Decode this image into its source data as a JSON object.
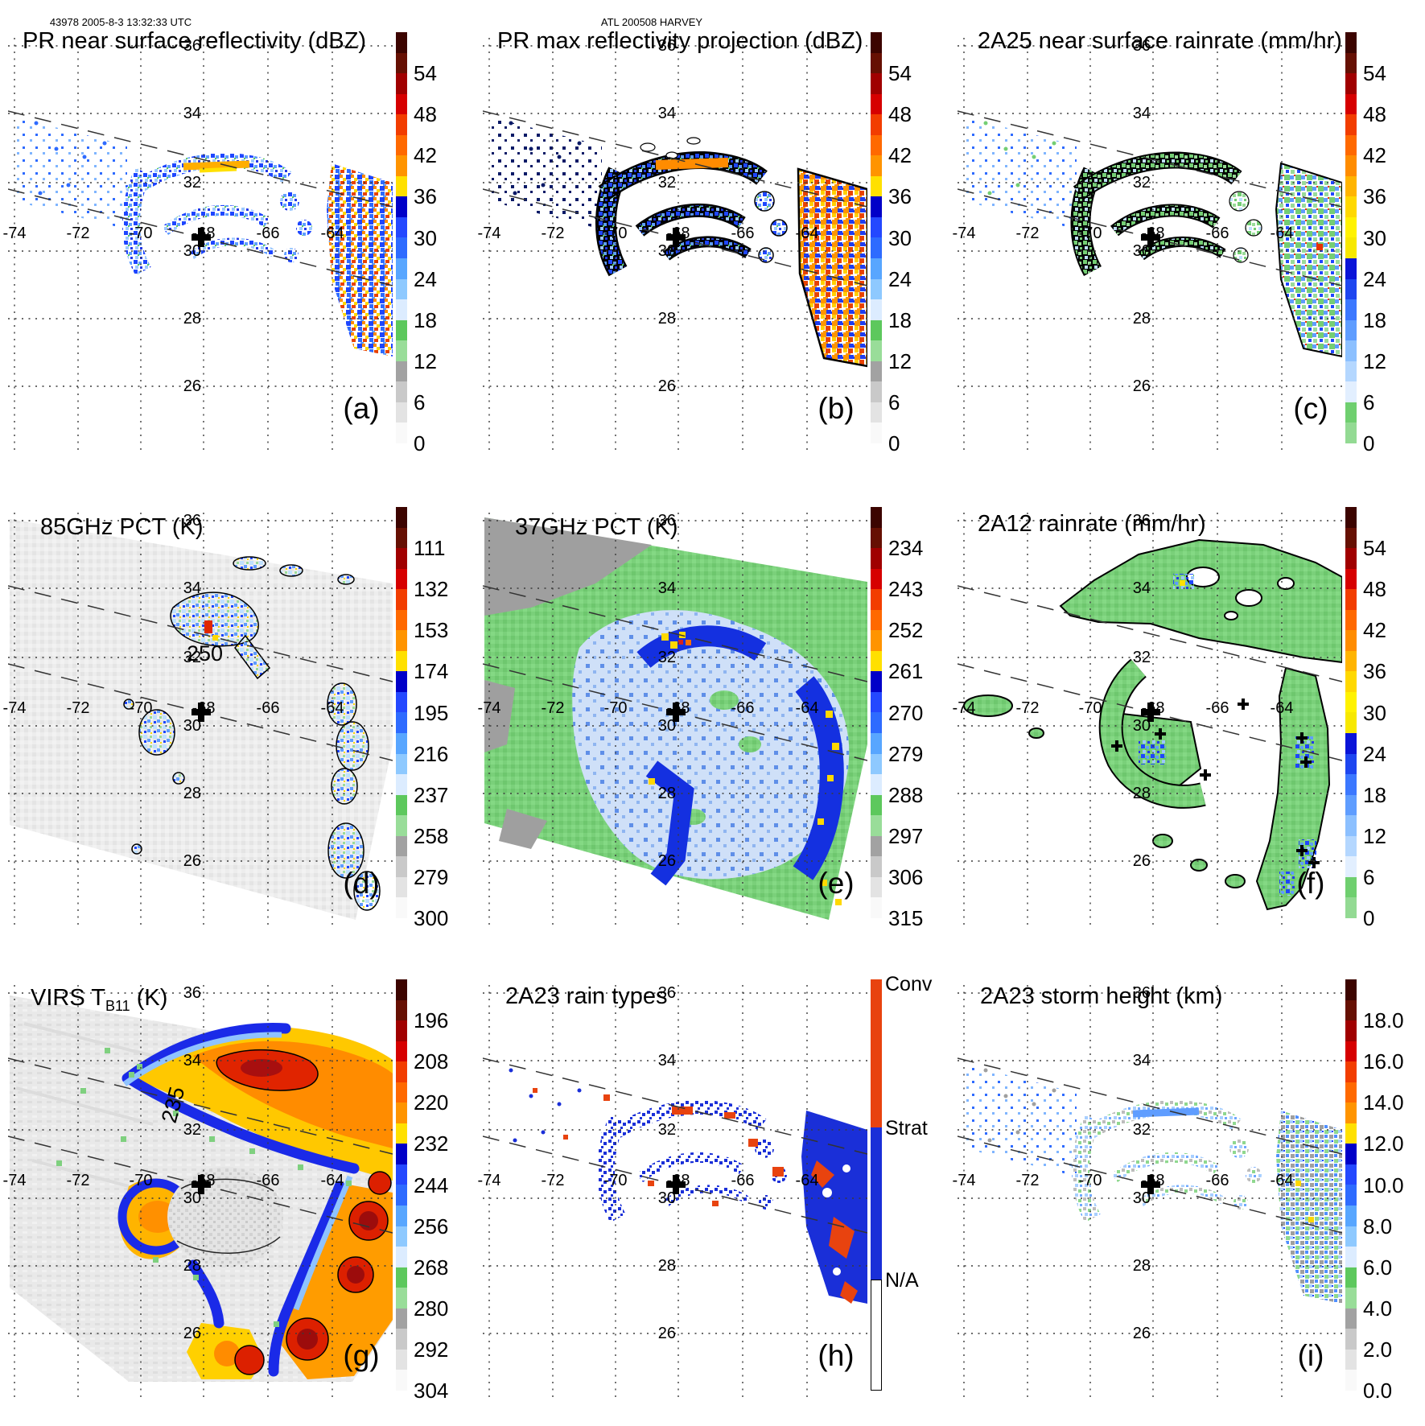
{
  "header": {
    "left": "43978 2005-8-3 13:32:33 UTC",
    "center": "ATL 200508 HARVEY"
  },
  "axes": {
    "lon_labels": [
      "-74",
      "-72",
      "-70",
      "-68",
      "-66",
      "-64"
    ],
    "lat_labels": [
      "36",
      "34",
      "32",
      "30",
      "28",
      "26"
    ]
  },
  "palettes": {
    "std": [
      "#3c0400",
      "#661003",
      "#a00000",
      "#d60000",
      "#f23d00",
      "#ff6900",
      "#ff9400",
      "#ffe000",
      "#0000c8",
      "#2448ff",
      "#2e6bff",
      "#58a6ff",
      "#8ec9ff",
      "#dcecff",
      "#5dc85d",
      "#99dd99",
      "#a2a2a2",
      "#c9c9c9",
      "#e3e3e3",
      "#f9f9f9"
    ],
    "rain": [
      "#3c0400",
      "#661003",
      "#a00000",
      "#d60000",
      "#f23d00",
      "#ff6900",
      "#ff8c00",
      "#ffb400",
      "#ffd800",
      "#fff200",
      "#f7e800",
      "#0a14d8",
      "#1e46f0",
      "#3c78ff",
      "#5f9dff",
      "#8cc0ff",
      "#b4d7ff",
      "#e2efff",
      "#6fcf6f",
      "#93da93"
    ]
  },
  "panels": [
    {
      "id": "a",
      "title": "PR near surface reflectivity (dBZ)",
      "label": "(a)",
      "colorbar": {
        "kind": "scale",
        "palette": "std",
        "ticks": [
          "54",
          "48",
          "42",
          "36",
          "30",
          "24",
          "18",
          "12",
          "6",
          "0"
        ]
      }
    },
    {
      "id": "b",
      "title": "PR max reflectivity projection (dBZ)",
      "label": "(b)",
      "colorbar": {
        "kind": "scale",
        "palette": "std",
        "ticks": [
          "54",
          "48",
          "42",
          "36",
          "30",
          "24",
          "18",
          "12",
          "6",
          "0"
        ]
      }
    },
    {
      "id": "c",
      "title": "2A25 near surface rainrate (mm/hr)",
      "label": "(c)",
      "colorbar": {
        "kind": "scale",
        "palette": "rain",
        "ticks": [
          "54",
          "48",
          "42",
          "36",
          "30",
          "24",
          "18",
          "12",
          "6",
          "0"
        ]
      }
    },
    {
      "id": "d",
      "title": "85GHz PCT (K)",
      "label": "(d)",
      "annotation": "250",
      "colorbar": {
        "kind": "scale",
        "palette": "std",
        "ticks": [
          "111",
          "132",
          "153",
          "174",
          "195",
          "216",
          "237",
          "258",
          "279",
          "300"
        ]
      }
    },
    {
      "id": "e",
      "title": "37GHz PCT (K)",
      "label": "(e)",
      "colorbar": {
        "kind": "scale",
        "palette": "std",
        "ticks": [
          "234",
          "243",
          "252",
          "261",
          "270",
          "279",
          "288",
          "297",
          "306",
          "315"
        ]
      }
    },
    {
      "id": "f",
      "title": "2A12 rainrate (mm/hr)",
      "label": "(f)",
      "colorbar": {
        "kind": "scale",
        "palette": "rain",
        "ticks": [
          "54",
          "48",
          "42",
          "36",
          "30",
          "24",
          "18",
          "12",
          "6",
          "0"
        ]
      }
    },
    {
      "id": "g",
      "title": "VIRS T",
      "title_sub": "B11",
      "title_tail": " (K)",
      "label": "(g)",
      "annotation": "235",
      "colorbar": {
        "kind": "scale",
        "palette": "std",
        "ticks": [
          "196",
          "208",
          "220",
          "232",
          "244",
          "256",
          "268",
          "280",
          "292",
          "304"
        ]
      }
    },
    {
      "id": "h",
      "title": "2A23 rain types",
      "label": "(h)",
      "colorbar": {
        "kind": "categories",
        "blocks": [
          {
            "label": "Conv",
            "color": "#e8430f",
            "frac": 0.36
          },
          {
            "label": "Strat",
            "color": "#1a2fd8",
            "frac": 0.37
          },
          {
            "label": "N/A",
            "color": "#ffffff",
            "frac": 0.27
          }
        ]
      }
    },
    {
      "id": "i",
      "title": "2A23 storm height (km)",
      "label": "(i)",
      "colorbar": {
        "kind": "scale",
        "palette": "std",
        "ticks": [
          "18.0",
          "16.0",
          "14.0",
          "12.0",
          "10.0",
          "8.0",
          "6.0",
          "4.0",
          "2.0",
          "0.0"
        ]
      }
    }
  ],
  "chart_data": {
    "overpass": {
      "orbit": 43978,
      "date": "2005-8-3",
      "time_utc": "13:32:33",
      "basin": "ATL",
      "storm_code": "200508",
      "storm_name": "HARVEY"
    },
    "geo_domain": {
      "lon_range": [
        -75.2,
        -61.9
      ],
      "lat_range": [
        25.0,
        36.6
      ],
      "lon_ticks": [
        -74,
        -72,
        -70,
        -68,
        -66,
        -64
      ],
      "lat_ticks": [
        36,
        34,
        32,
        30,
        28,
        26
      ],
      "grid": "dotted",
      "swath_edges": "two dashed lines sloping from upper-left to lower-right",
      "storm_center_marker": {
        "lon": -67.9,
        "lat": 30.4
      }
    },
    "panels": [
      {
        "panel": "(a)",
        "type": "heatmap",
        "title": "PR near surface reflectivity (dBZ)",
        "units": "dBZ",
        "colorbar_ticks": [
          54,
          48,
          42,
          36,
          30,
          24,
          18,
          12,
          6,
          0
        ],
        "value_range": [
          0,
          60
        ],
        "legend_position": "right",
        "features": "scattered spiral-band radar echoes 18-35 dBZ with embedded 36-48 dBZ cells near 32N -68 to -66; large intense echo cluster at eastern swath edge near -63"
      },
      {
        "panel": "(b)",
        "type": "heatmap",
        "title": "PR max reflectivity projection (dBZ)",
        "units": "dBZ",
        "colorbar_ticks": [
          54,
          48,
          42,
          36,
          30,
          24,
          18,
          12,
          6,
          0
        ],
        "value_range": [
          0,
          60
        ],
        "legend_position": "right",
        "features": "same echo pattern as (a) but more contiguous, black-outlined echoes with larger 36-48 dBZ orange areas, strongest in eastern cluster"
      },
      {
        "panel": "(c)",
        "type": "heatmap",
        "title": "2A25 near surface rainrate (mm/hr)",
        "units": "mm/hr",
        "colorbar_ticks": [
          54,
          48,
          42,
          36,
          30,
          24,
          18,
          12,
          6,
          0
        ],
        "value_range": [
          0,
          60
        ],
        "legend_position": "right",
        "features": "rainbands mostly 0-6 mm/hr (green) with embedded 6-24 mm/hr blue cells; outlined rain areas matching panel (a) echoes"
      },
      {
        "panel": "(d)",
        "type": "heatmap",
        "title": "85GHz PCT (K)",
        "units": "K",
        "colorbar_ticks": [
          111,
          132,
          153,
          174,
          195,
          216,
          237,
          258,
          279,
          300
        ],
        "value_range": [
          100,
          300
        ],
        "legend_position": "right",
        "annotations": [
          {
            "text": "250",
            "meaning": "250 K PCT contour label"
          }
        ],
        "features": "mostly warm background 270-300 K (light gray); scattering cells below 250 K (green/blue) in northern band near 32.5N -68 with minimum near 150 K (red); cell chains along eastern swath"
      },
      {
        "panel": "(e)",
        "type": "heatmap",
        "title": "37GHz PCT (K)",
        "units": "K",
        "colorbar_ticks": [
          234,
          243,
          252,
          261,
          270,
          279,
          288,
          297,
          306,
          315
        ],
        "value_range": [
          230,
          315
        ],
        "legend_position": "right",
        "features": "green background 288-297 K; broad light-blue 270-285 K storm shield around center; dark-blue 261-270 K arcs with yellow 255-261 K cells north of center and along east side; gray >297 K at NW corner"
      },
      {
        "panel": "(f)",
        "type": "heatmap",
        "title": "2A12 rainrate (mm/hr)",
        "units": "mm/hr",
        "colorbar_ticks": [
          54,
          48,
          42,
          36,
          30,
          24,
          18,
          12,
          6,
          0
        ],
        "value_range": [
          0,
          60
        ],
        "legend_position": "right",
        "features": "wide TMI rain shield 0-6 mm/hr (green) in curved outer band and eastern band; embedded 6-24 mm/hr blue cells; one ~30 mm/hr yellow pixel near 33N -67.5; small black + markers at local maxima"
      },
      {
        "panel": "(g)",
        "type": "heatmap",
        "title": "VIRS TB11 (K)",
        "units": "K",
        "colorbar_ticks": [
          196,
          208,
          220,
          232,
          244,
          256,
          268,
          280,
          292,
          304
        ],
        "value_range": [
          190,
          304
        ],
        "legend_position": "right",
        "annotations": [
          {
            "text": "235",
            "meaning": "235 K brightness-temperature contour label"
          }
        ],
        "features": "cold cloud shield: large 208-232 K orange/yellow regions with <208 K dark-red cores north and southeast of center, blue 232-256 K fringes, warm gray 280-304 K clear air NW and in low-cloud eye region near center"
      },
      {
        "panel": "(h)",
        "type": "categorical-map",
        "title": "2A23 rain types",
        "categories": [
          {
            "name": "Conv",
            "color": "#e8430f"
          },
          {
            "name": "Strat",
            "color": "#1a2fd8"
          },
          {
            "name": "N/A",
            "color": "#ffffff"
          }
        ],
        "legend_position": "right",
        "features": "stratiform (blue) dominates spiral bands and eastern cluster; convective (orange-red) speckles embedded along band edges and within eastern cluster"
      },
      {
        "panel": "(i)",
        "type": "heatmap",
        "title": "2A23 storm height (km)",
        "units": "km",
        "colorbar_ticks": [
          18.0,
          16.0,
          14.0,
          12.0,
          10.0,
          8.0,
          6.0,
          4.0,
          2.0,
          0.0
        ],
        "value_range": [
          0,
          19
        ],
        "legend_position": "right",
        "features": "storm heights mostly 2-5 km (gray) and 5-7 km (green) along rainbands; 7-11 km blue cells in northern band near 32N and in eastern cluster; isolated ~12 km yellow pixels"
      }
    ]
  }
}
